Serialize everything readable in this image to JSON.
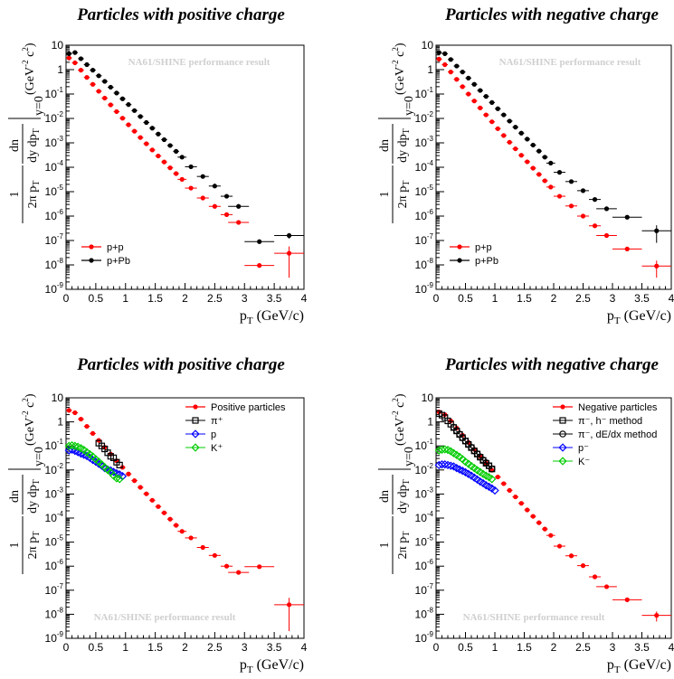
{
  "chart_data": [
    {
      "type": "scatter",
      "title": "Particles with positive charge",
      "watermark": "NA61/SHINE performance result",
      "xlabel": "p_T (GeV/c)",
      "ylabel": "1/(2π p_T) dn/(dy dp_T)|_{y=0} (GeV^-2 c^2)",
      "xlim": [
        0,
        4
      ],
      "ylim": [
        1e-09,
        10
      ],
      "log_y": true,
      "legend_position": "bottom-left",
      "xticks": [
        "0",
        "0.5",
        "1",
        "1.5",
        "2",
        "2.5",
        "3",
        "3.5",
        "4"
      ],
      "series": [
        {
          "name": "p+p",
          "color": "#ff0000",
          "marker": "filled-circle",
          "x": [
            0.05,
            0.15,
            0.25,
            0.35,
            0.45,
            0.55,
            0.65,
            0.75,
            0.85,
            0.95,
            1.05,
            1.15,
            1.25,
            1.35,
            1.45,
            1.55,
            1.65,
            1.75,
            1.85,
            1.95,
            2.1,
            2.3,
            2.5,
            2.7,
            2.9,
            3.25,
            3.75
          ],
          "y": [
            3.0,
            1.9,
            0.95,
            0.48,
            0.25,
            0.13,
            0.068,
            0.036,
            0.019,
            0.0102,
            0.0055,
            0.003,
            0.00165,
            0.00092,
            0.00051,
            0.00029,
            0.000165,
            9.5e-05,
            5.5e-05,
            3.2e-05,
            1.4e-05,
            5.5e-06,
            2.5e-06,
            1.15e-06,
            5.5e-07,
            9.5e-09,
            3e-08
          ],
          "y_err": [
            0,
            0,
            0,
            0,
            0,
            0,
            0,
            0,
            0,
            0,
            0,
            0,
            0,
            0,
            0,
            0,
            0,
            0,
            0,
            0,
            0,
            0,
            0,
            0,
            0,
            0,
            2.7e-08
          ]
        },
        {
          "name": "p+Pb",
          "color": "#000000",
          "marker": "filled-circle",
          "x": [
            0.05,
            0.15,
            0.25,
            0.35,
            0.45,
            0.55,
            0.65,
            0.75,
            0.85,
            0.95,
            1.05,
            1.15,
            1.25,
            1.35,
            1.45,
            1.55,
            1.65,
            1.75,
            1.85,
            1.95,
            2.1,
            2.3,
            2.5,
            2.7,
            2.9,
            3.25,
            3.75
          ],
          "y": [
            4.5,
            5.0,
            2.8,
            1.6,
            0.95,
            0.56,
            0.33,
            0.19,
            0.11,
            0.064,
            0.037,
            0.021,
            0.012,
            0.0068,
            0.004,
            0.0023,
            0.00135,
            0.00078,
            0.00045,
            0.00026,
            0.000105,
            4.2e-05,
            1.7e-05,
            6.5e-06,
            2.5e-06,
            9e-08,
            1.6e-07
          ],
          "y_err": [
            0,
            0,
            0,
            0,
            0,
            0,
            0,
            0,
            0,
            0,
            0,
            0,
            0,
            0,
            0,
            0,
            0,
            0,
            0,
            0,
            0,
            0,
            0,
            0,
            0,
            0,
            4e-08
          ]
        }
      ]
    },
    {
      "type": "scatter",
      "title": "Particles with negative charge",
      "watermark": "NA61/SHINE performance result",
      "xlabel": "p_T (GeV/c)",
      "ylabel": "1/(2π p_T) dn/(dy dp_T)|_{y=0} (GeV^-2 c^2)",
      "xlim": [
        0,
        4
      ],
      "ylim": [
        1e-09,
        10
      ],
      "log_y": true,
      "legend_position": "bottom-left",
      "xticks": [
        "0",
        "0.5",
        "1",
        "1.5",
        "2",
        "2.5",
        "3",
        "3.5",
        "4"
      ],
      "series": [
        {
          "name": "p+p",
          "color": "#ff0000",
          "marker": "filled-circle",
          "x": [
            0.05,
            0.15,
            0.25,
            0.35,
            0.45,
            0.55,
            0.65,
            0.75,
            0.85,
            0.95,
            1.05,
            1.15,
            1.25,
            1.35,
            1.45,
            1.55,
            1.65,
            1.75,
            1.85,
            1.95,
            2.1,
            2.3,
            2.5,
            2.7,
            2.9,
            3.25,
            3.75
          ],
          "y": [
            2.7,
            1.6,
            0.8,
            0.4,
            0.2,
            0.1,
            0.052,
            0.027,
            0.014,
            0.0073,
            0.0038,
            0.002,
            0.00106,
            0.00057,
            0.00031,
            0.000168,
            9.2e-05,
            5.1e-05,
            2.8e-05,
            1.55e-05,
            6.5e-06,
            2.6e-06,
            1e-06,
            4e-07,
            1.6e-07,
            4.5e-08,
            9e-09
          ],
          "y_err": [
            0,
            0,
            0,
            0,
            0,
            0,
            0,
            0,
            0,
            0,
            0,
            0,
            0,
            0,
            0,
            0,
            0,
            0,
            0,
            0,
            0,
            0,
            0,
            0,
            0,
            0,
            6e-09
          ]
        },
        {
          "name": "p+Pb",
          "color": "#000000",
          "marker": "filled-circle",
          "x": [
            0.05,
            0.15,
            0.25,
            0.35,
            0.45,
            0.55,
            0.65,
            0.75,
            0.85,
            0.95,
            1.05,
            1.15,
            1.25,
            1.35,
            1.45,
            1.55,
            1.65,
            1.75,
            1.85,
            1.95,
            2.1,
            2.3,
            2.5,
            2.7,
            2.9,
            3.25,
            3.75
          ],
          "y": [
            5.0,
            4.5,
            2.6,
            1.4,
            0.8,
            0.45,
            0.25,
            0.14,
            0.08,
            0.045,
            0.025,
            0.014,
            0.0078,
            0.0044,
            0.0025,
            0.00142,
            0.00081,
            0.00046,
            0.00026,
            0.000148,
            6.2e-05,
            2.6e-05,
            1.1e-05,
            4.8e-06,
            2e-06,
            9e-07,
            2.5e-07
          ],
          "y_err": [
            0,
            0,
            0,
            0,
            0,
            0,
            0,
            0,
            0,
            0,
            0,
            0,
            0,
            0,
            0,
            0,
            0,
            0,
            0,
            0,
            0,
            0,
            0,
            0,
            0,
            0,
            1.7e-07
          ]
        }
      ]
    },
    {
      "type": "scatter",
      "title": "Particles with positive charge",
      "watermark": "NA61/SHINE performance result",
      "xlabel": "p_T (GeV/c)",
      "ylabel": "1/(2π p_T) dn/(dy dp_T)|_{y=0} (GeV^-2 c^2)",
      "xlim": [
        0,
        4
      ],
      "ylim": [
        1e-09,
        10
      ],
      "log_y": true,
      "legend_position": "top-right",
      "xticks": [
        "0",
        "0.5",
        "1",
        "1.5",
        "2",
        "2.5",
        "3",
        "3.5",
        "4"
      ],
      "series": [
        {
          "name": "Positive particles",
          "color": "#ff0000",
          "marker": "filled-circle",
          "x": [
            0.05,
            0.15,
            0.25,
            0.35,
            0.45,
            0.55,
            0.65,
            0.75,
            0.85,
            0.95,
            1.05,
            1.15,
            1.25,
            1.35,
            1.45,
            1.55,
            1.65,
            1.75,
            1.85,
            1.95,
            2.1,
            2.3,
            2.5,
            2.7,
            2.9,
            3.25,
            3.75
          ],
          "y": [
            3.0,
            2.4,
            1.3,
            0.65,
            0.33,
            0.17,
            0.088,
            0.046,
            0.024,
            0.0128,
            0.0068,
            0.0036,
            0.0019,
            0.00102,
            0.00055,
            0.0003,
            0.000165,
            9e-05,
            5e-05,
            2.8e-05,
            1.5e-05,
            6e-06,
            2.8e-06,
            1e-06,
            5.5e-07,
            9.5e-07,
            2.5e-08
          ],
          "y_err": [
            0,
            0,
            0,
            0,
            0,
            0,
            0,
            0,
            0,
            0,
            0,
            0,
            0,
            0,
            0,
            0,
            0,
            0,
            0,
            0,
            0,
            0,
            0,
            0,
            0,
            0,
            2.3e-08
          ]
        },
        {
          "name": "π⁺",
          "color": "#000000",
          "marker": "open-square",
          "x": [
            0.55,
            0.6,
            0.65,
            0.7,
            0.75,
            0.8,
            0.85,
            0.9
          ],
          "y": [
            0.13,
            0.1,
            0.075,
            0.052,
            0.037,
            0.032,
            0.021,
            0.016
          ]
        },
        {
          "name": "p",
          "color": "#0000ff",
          "marker": "open-diamond",
          "x": [
            0.05,
            0.1,
            0.15,
            0.2,
            0.25,
            0.3,
            0.35,
            0.4,
            0.45,
            0.5,
            0.55,
            0.6,
            0.65,
            0.7,
            0.75,
            0.8,
            0.85,
            0.9,
            0.95
          ],
          "y": [
            0.065,
            0.07,
            0.062,
            0.055,
            0.048,
            0.043,
            0.038,
            0.032,
            0.026,
            0.022,
            0.018,
            0.015,
            0.012,
            0.0105,
            0.0095,
            0.0083,
            0.0073,
            0.0065,
            0.0055
          ]
        },
        {
          "name": "K⁺",
          "color": "#00cc00",
          "marker": "open-diamond",
          "x": [
            0.05,
            0.1,
            0.15,
            0.2,
            0.25,
            0.3,
            0.35,
            0.4,
            0.45,
            0.5,
            0.55,
            0.6,
            0.65,
            0.7,
            0.75,
            0.8,
            0.85,
            0.9
          ],
          "y": [
            0.1,
            0.105,
            0.1,
            0.092,
            0.08,
            0.068,
            0.055,
            0.045,
            0.036,
            0.028,
            0.022,
            0.017,
            0.013,
            0.01,
            0.008,
            0.0058,
            0.0045,
            0.0042
          ]
        }
      ]
    },
    {
      "type": "scatter",
      "title": "Particles with negative charge",
      "watermark": "NA61/SHINE performance result",
      "xlabel": "p_T (GeV/c)",
      "ylabel": "1/(2π p_T) dn/(dy dp_T)|_{y=0} (GeV^-2 c^2)",
      "xlim": [
        0,
        4
      ],
      "ylim": [
        1e-09,
        10
      ],
      "log_y": true,
      "legend_position": "top-right",
      "xticks": [
        "0",
        "0.5",
        "1",
        "1.5",
        "2",
        "2.5",
        "3",
        "3.5",
        "4"
      ],
      "series": [
        {
          "name": "Negative particles",
          "color": "#ff0000",
          "marker": "filled-circle",
          "x": [
            0.05,
            0.15,
            0.25,
            0.35,
            0.45,
            0.55,
            0.65,
            0.75,
            0.85,
            0.95,
            1.05,
            1.15,
            1.25,
            1.35,
            1.45,
            1.55,
            1.65,
            1.75,
            1.85,
            1.95,
            2.1,
            2.3,
            2.5,
            2.7,
            2.9,
            3.25,
            3.75
          ],
          "y": [
            2.6,
            2.0,
            1.1,
            0.55,
            0.28,
            0.14,
            0.072,
            0.037,
            0.019,
            0.0098,
            0.0051,
            0.0027,
            0.00142,
            0.00076,
            0.00041,
            0.000218,
            0.000118,
            6.4e-05,
            3.5e-05,
            1.9e-05,
            6.8e-06,
            2.7e-06,
            1.05e-06,
            3.6e-07,
            1.4e-07,
            4e-08,
            9e-09
          ],
          "y_err": [
            0,
            0,
            0,
            0,
            0,
            0,
            0,
            0,
            0,
            0,
            0,
            0,
            0,
            0,
            0,
            0,
            0,
            0,
            0,
            0,
            0,
            0,
            0,
            0,
            0,
            0,
            4e-09
          ]
        },
        {
          "name": "π⁻, h⁻ method",
          "color": "#000000",
          "marker": "open-square",
          "x": [
            0.05,
            0.1,
            0.15,
            0.2,
            0.25,
            0.3,
            0.35,
            0.4,
            0.45,
            0.5,
            0.55,
            0.6,
            0.65,
            0.7,
            0.75,
            0.8,
            0.85,
            0.9,
            0.95
          ],
          "y": [
            2.2,
            1.9,
            1.5,
            1.1,
            0.8,
            0.58,
            0.42,
            0.3,
            0.22,
            0.16,
            0.115,
            0.085,
            0.062,
            0.046,
            0.034,
            0.025,
            0.019,
            0.015,
            0.011
          ]
        },
        {
          "name": "π⁻, dE/dx method",
          "color": "#000000",
          "marker": "open-circle",
          "x": [
            0.3,
            0.35,
            0.4,
            0.45,
            0.5,
            0.55,
            0.6,
            0.65,
            0.7,
            0.75,
            0.8,
            0.85,
            0.9,
            0.95
          ],
          "y": [
            0.6,
            0.43,
            0.31,
            0.22,
            0.16,
            0.118,
            0.087,
            0.063,
            0.047,
            0.035,
            0.026,
            0.02,
            0.015,
            0.011
          ]
        },
        {
          "name": "p⁻",
          "color": "#0000ff",
          "marker": "open-diamond",
          "x": [
            0.05,
            0.1,
            0.15,
            0.2,
            0.25,
            0.3,
            0.35,
            0.4,
            0.45,
            0.5,
            0.55,
            0.6,
            0.65,
            0.7,
            0.75,
            0.8,
            0.85,
            0.9,
            0.95,
            1.0
          ],
          "y": [
            0.016,
            0.017,
            0.017,
            0.016,
            0.015,
            0.014,
            0.012,
            0.0105,
            0.0092,
            0.008,
            0.0068,
            0.0058,
            0.0048,
            0.004,
            0.0033,
            0.0028,
            0.0023,
            0.002,
            0.0017,
            0.0014
          ]
        },
        {
          "name": "K⁻",
          "color": "#00cc00",
          "marker": "open-diamond",
          "x": [
            0.05,
            0.1,
            0.15,
            0.2,
            0.25,
            0.3,
            0.35,
            0.4,
            0.45,
            0.5,
            0.55,
            0.6,
            0.65,
            0.7,
            0.75,
            0.8,
            0.85,
            0.9,
            0.95
          ],
          "y": [
            0.065,
            0.07,
            0.072,
            0.068,
            0.06,
            0.05,
            0.042,
            0.035,
            0.028,
            0.022,
            0.018,
            0.0145,
            0.012,
            0.0098,
            0.0082,
            0.0068,
            0.0058,
            0.005,
            0.0042
          ]
        }
      ]
    }
  ]
}
